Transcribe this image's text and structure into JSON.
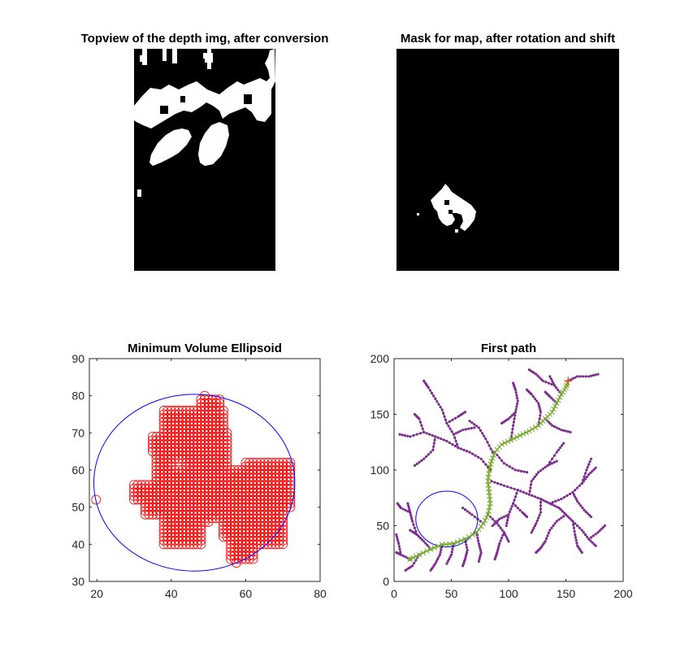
{
  "chart_data": [
    {
      "type": "image",
      "title": "Topview of the depth img, after conversion",
      "colormap": "binary",
      "white_blobs": [
        {
          "kind": "top-left-columns"
        },
        {
          "kind": "center-cloud"
        },
        {
          "kind": "ellipse-blob"
        },
        {
          "kind": "small-dot"
        }
      ]
    },
    {
      "type": "image",
      "title": "Mask for map, after rotation and shift",
      "colormap": "binary",
      "white_blobs": [
        {
          "kind": "mask-shape"
        }
      ]
    },
    {
      "type": "scatter",
      "title": "Minimum Volume Ellipsoid",
      "xlim": [
        18,
        80
      ],
      "ylim": [
        30,
        90
      ],
      "xticks": [
        "20",
        "40",
        "60",
        "80"
      ],
      "yticks": [
        "30",
        "40",
        "50",
        "60",
        "70",
        "80",
        "90"
      ],
      "marker_color": "#ff0000",
      "ellipse_color": "#0000ff",
      "ellipse": {
        "cx": 46.2,
        "cy": 56.6,
        "rx": 27.0,
        "ry": 23.8
      },
      "outliers": [
        [
          19.8,
          52.0
        ],
        [
          49.0,
          80.0
        ],
        [
          57.5,
          35.0
        ],
        [
          72.0,
          53.0
        ]
      ],
      "regions": [
        {
          "x": [
            35,
            40
          ],
          "y": [
            65,
            69
          ]
        },
        {
          "x": [
            30,
            38
          ],
          "y": [
            52,
            56
          ]
        },
        {
          "x": [
            33,
            43
          ],
          "y": [
            48,
            56
          ]
        },
        {
          "x": [
            36,
            50
          ],
          "y": [
            53,
            64
          ]
        },
        {
          "x": [
            38,
            54
          ],
          "y": [
            64,
            76
          ]
        },
        {
          "x": [
            43,
            55
          ],
          "y": [
            60,
            70
          ]
        },
        {
          "x": [
            48,
            53
          ],
          "y": [
            72,
            79
          ]
        },
        {
          "x": [
            38,
            48
          ],
          "y": [
            40,
            50
          ]
        },
        {
          "x": [
            40,
            50
          ],
          "y": [
            46,
            52
          ]
        },
        {
          "x": [
            48,
            56
          ],
          "y": [
            47,
            60
          ]
        },
        {
          "x": [
            54,
            62
          ],
          "y": [
            42,
            60
          ]
        },
        {
          "x": [
            58,
            70
          ],
          "y": [
            40,
            50
          ]
        },
        {
          "x": [
            60,
            72
          ],
          "y": [
            50,
            62
          ]
        },
        {
          "x": [
            56,
            62
          ],
          "y": [
            36,
            42
          ]
        }
      ],
      "holes": [
        {
          "x": [
            41,
            43
          ],
          "y": [
            61,
            62
          ]
        }
      ]
    },
    {
      "type": "line",
      "title": "First path",
      "xlim": [
        0,
        200
      ],
      "ylim": [
        0,
        200
      ],
      "xticks": [
        "0",
        "50",
        "100",
        "150",
        "200"
      ],
      "yticks": [
        "0",
        "50",
        "100",
        "150",
        "200"
      ],
      "tree_color": "#7e2f8e",
      "path_color": "#77ac30",
      "ellipse_color": "#0000ff",
      "ellipse": {
        "cx": 46,
        "cy": 56,
        "rx": 27,
        "ry": 25
      },
      "start": [
        14,
        20
      ],
      "goal": [
        152,
        180
      ],
      "path": [
        [
          14,
          20
        ],
        [
          22,
          24
        ],
        [
          32,
          29
        ],
        [
          42,
          33
        ],
        [
          52,
          34
        ],
        [
          62,
          38
        ],
        [
          72,
          44
        ],
        [
          78,
          52
        ],
        [
          82,
          60
        ],
        [
          84,
          70
        ],
        [
          83,
          80
        ],
        [
          82,
          90
        ],
        [
          83,
          100
        ],
        [
          85,
          108
        ],
        [
          88,
          116
        ],
        [
          94,
          123
        ],
        [
          102,
          127
        ],
        [
          110,
          131
        ],
        [
          118,
          135
        ],
        [
          126,
          140
        ],
        [
          132,
          146
        ],
        [
          138,
          152
        ],
        [
          142,
          160
        ],
        [
          146,
          168
        ],
        [
          150,
          174
        ],
        [
          152,
          180
        ]
      ],
      "branches": [
        [
          [
            84,
            100
          ],
          [
            76,
            110
          ],
          [
            66,
            116
          ],
          [
            56,
            120
          ],
          [
            46,
            126
          ],
          [
            36,
            130
          ],
          [
            26,
            134
          ],
          [
            14,
            130
          ],
          [
            5,
            132
          ]
        ],
        [
          [
            56,
            120
          ],
          [
            52,
            132
          ],
          [
            46,
            142
          ],
          [
            42,
            154
          ],
          [
            36,
            164
          ],
          [
            30,
            174
          ],
          [
            26,
            180
          ]
        ],
        [
          [
            46,
            142
          ],
          [
            56,
            148
          ],
          [
            62,
            152
          ]
        ],
        [
          [
            36,
            130
          ],
          [
            34,
            118
          ],
          [
            26,
            110
          ],
          [
            18,
            104
          ]
        ],
        [
          [
            26,
            134
          ],
          [
            22,
            146
          ],
          [
            18,
            150
          ]
        ],
        [
          [
            86,
            116
          ],
          [
            80,
            128
          ],
          [
            74,
            138
          ],
          [
            66,
            144
          ]
        ],
        [
          [
            102,
            127
          ],
          [
            104,
            140
          ],
          [
            106,
            152
          ],
          [
            108,
            162
          ],
          [
            106,
            172
          ],
          [
            104,
            178
          ]
        ],
        [
          [
            106,
            152
          ],
          [
            100,
            146
          ],
          [
            94,
            142
          ]
        ],
        [
          [
            132,
            146
          ],
          [
            138,
            140
          ],
          [
            146,
            136
          ],
          [
            154,
            134
          ]
        ],
        [
          [
            126,
            140
          ],
          [
            128,
            152
          ],
          [
            126,
            160
          ],
          [
            120,
            168
          ],
          [
            116,
            172
          ]
        ],
        [
          [
            142,
            160
          ],
          [
            136,
            166
          ],
          [
            132,
            170
          ]
        ],
        [
          [
            146,
            168
          ],
          [
            140,
            176
          ],
          [
            136,
            184
          ]
        ],
        [
          [
            152,
            180
          ],
          [
            160,
            184
          ],
          [
            170,
            184
          ],
          [
            178,
            186
          ]
        ],
        [
          [
            140,
            176
          ],
          [
            130,
            180
          ],
          [
            124,
            186
          ],
          [
            118,
            190
          ]
        ],
        [
          [
            85,
            90
          ],
          [
            96,
            86
          ],
          [
            108,
            82
          ],
          [
            118,
            78
          ],
          [
            128,
            74
          ],
          [
            136,
            70
          ],
          [
            144,
            66
          ]
        ],
        [
          [
            128,
            74
          ],
          [
            128,
            62
          ],
          [
            124,
            52
          ],
          [
            120,
            44
          ]
        ],
        [
          [
            136,
            70
          ],
          [
            146,
            74
          ],
          [
            156,
            80
          ],
          [
            164,
            88
          ],
          [
            170,
            96
          ],
          [
            176,
            102
          ]
        ],
        [
          [
            156,
            80
          ],
          [
            160,
            72
          ],
          [
            166,
            64
          ],
          [
            172,
            58
          ]
        ],
        [
          [
            144,
            66
          ],
          [
            150,
            60
          ],
          [
            156,
            54
          ],
          [
            164,
            46
          ],
          [
            170,
            38
          ],
          [
            176,
            32
          ]
        ],
        [
          [
            156,
            54
          ],
          [
            158,
            42
          ],
          [
            160,
            32
          ],
          [
            164,
            26
          ]
        ],
        [
          [
            150,
            60
          ],
          [
            142,
            54
          ],
          [
            136,
            46
          ],
          [
            132,
            36
          ],
          [
            128,
            30
          ],
          [
            124,
            26
          ]
        ],
        [
          [
            164,
            88
          ],
          [
            168,
            100
          ],
          [
            172,
            110
          ]
        ],
        [
          [
            170,
            38
          ],
          [
            178,
            44
          ],
          [
            184,
            50
          ]
        ],
        [
          [
            118,
            78
          ],
          [
            120,
            90
          ],
          [
            126,
            98
          ],
          [
            134,
            104
          ],
          [
            142,
            108
          ]
        ],
        [
          [
            134,
            104
          ],
          [
            142,
            116
          ],
          [
            148,
            124
          ]
        ],
        [
          [
            108,
            82
          ],
          [
            104,
            70
          ],
          [
            100,
            60
          ],
          [
            98,
            50
          ]
        ],
        [
          [
            100,
            60
          ],
          [
            92,
            56
          ],
          [
            86,
            50
          ]
        ],
        [
          [
            104,
            70
          ],
          [
            112,
            62
          ],
          [
            116,
            58
          ]
        ],
        [
          [
            82,
            60
          ],
          [
            90,
            52
          ],
          [
            96,
            44
          ],
          [
            100,
            36
          ]
        ],
        [
          [
            96,
            44
          ],
          [
            92,
            34
          ],
          [
            90,
            26
          ],
          [
            88,
            20
          ]
        ],
        [
          [
            72,
            44
          ],
          [
            74,
            34
          ],
          [
            76,
            26
          ],
          [
            74,
            18
          ]
        ],
        [
          [
            62,
            38
          ],
          [
            64,
            28
          ],
          [
            62,
            20
          ],
          [
            60,
            14
          ]
        ],
        [
          [
            52,
            34
          ],
          [
            50,
            24
          ],
          [
            46,
            16
          ]
        ],
        [
          [
            42,
            33
          ],
          [
            40,
            24
          ],
          [
            36,
            16
          ],
          [
            32,
            10
          ]
        ],
        [
          [
            32,
            29
          ],
          [
            26,
            36
          ],
          [
            20,
            42
          ],
          [
            14,
            46
          ]
        ],
        [
          [
            20,
            42
          ],
          [
            16,
            54
          ],
          [
            14,
            62
          ],
          [
            12,
            70
          ]
        ],
        [
          [
            14,
            62
          ],
          [
            6,
            66
          ],
          [
            3,
            70
          ]
        ],
        [
          [
            22,
            24
          ],
          [
            16,
            14
          ],
          [
            10,
            10
          ]
        ],
        [
          [
            14,
            20
          ],
          [
            6,
            24
          ],
          [
            2,
            26
          ]
        ],
        [
          [
            6,
            24
          ],
          [
            4,
            34
          ],
          [
            2,
            42
          ]
        ],
        [
          [
            88,
            116
          ],
          [
            96,
            106
          ],
          [
            106,
            100
          ],
          [
            116,
            98
          ]
        ],
        [
          [
            78,
            52
          ],
          [
            68,
            60
          ],
          [
            60,
            66
          ]
        ],
        [
          [
            52,
            132
          ],
          [
            60,
            136
          ],
          [
            70,
            138
          ]
        ]
      ]
    }
  ]
}
